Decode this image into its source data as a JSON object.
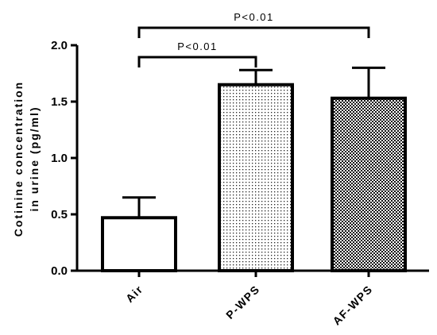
{
  "chart_data": {
    "type": "bar",
    "categories": [
      "Air",
      "P-WPS",
      "AF-WPS"
    ],
    "values": [
      0.47,
      1.65,
      1.53
    ],
    "error_upper": [
      0.65,
      1.78,
      1.8
    ],
    "fills": [
      "none",
      "dots",
      "checker"
    ],
    "ylabel_line1": "Cotinine concentration",
    "ylabel_line2": "in urine (pg/ml)",
    "ylim": [
      0,
      2.0
    ],
    "yticks": [
      "0.0",
      "0.5",
      "1.0",
      "1.5",
      "2.0"
    ],
    "ytick_values": [
      0.0,
      0.5,
      1.0,
      1.5,
      2.0
    ],
    "significance": [
      {
        "from": "Air",
        "to": "P-WPS",
        "label": "P<0.01"
      },
      {
        "from": "Air",
        "to": "AF-WPS",
        "label": "P<0.01"
      }
    ],
    "grid": false,
    "legend": false
  }
}
